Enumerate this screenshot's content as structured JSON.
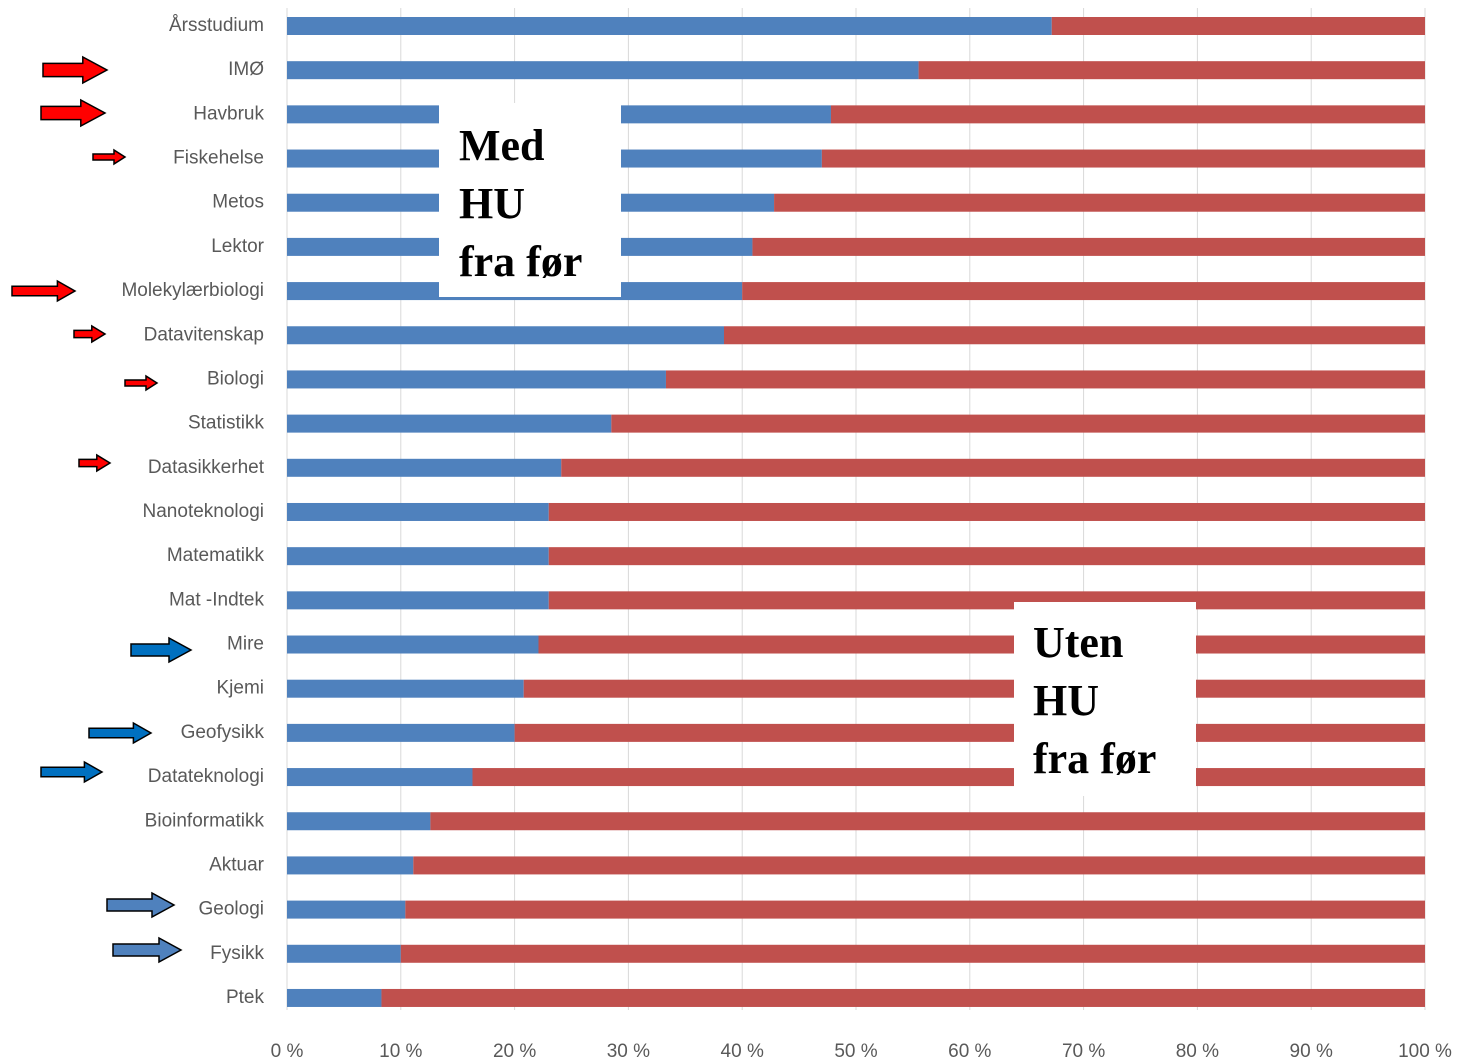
{
  "chart_data": {
    "type": "stacked_bar_horizontal",
    "categories": [
      "Årsstudium",
      "IMØ",
      "Havbruk",
      "Fiskehelse",
      "Metos",
      "Lektor",
      "Molekylærbiologi",
      "Datavitenskap",
      "Biologi",
      "Statistikk",
      "Datasikkerhet",
      "Nanoteknologi",
      "Matematikk",
      "Mat -Indtek",
      "Mire",
      "Kjemi",
      "Geofysikk",
      "Datateknologi",
      "Bioinformatikk",
      "Aktuar",
      "Geologi",
      "Fysikk",
      "Ptek"
    ],
    "series": [
      {
        "color": "#4f81bd",
        "values": [
          67.2,
          55.5,
          47.8,
          47.0,
          42.8,
          40.9,
          40.0,
          38.4,
          33.3,
          28.5,
          24.1,
          23.0,
          23.0,
          23.0,
          22.1,
          20.8,
          20.0,
          16.3,
          12.6,
          11.1,
          10.4,
          10.0,
          8.3
        ]
      },
      {
        "color": "#c0504d",
        "values": [
          32.8,
          44.5,
          52.2,
          53.0,
          57.2,
          59.1,
          60.0,
          61.6,
          66.7,
          71.5,
          75.9,
          77.0,
          77.0,
          77.0,
          77.9,
          79.2,
          80.0,
          83.7,
          87.4,
          88.9,
          89.6,
          90.0,
          91.7
        ]
      }
    ],
    "xlim": [
      0,
      100
    ],
    "xticks": [
      {
        "value": 0,
        "label": "0 %"
      },
      {
        "value": 10,
        "label": "10 %"
      },
      {
        "value": 20,
        "label": "20 %"
      },
      {
        "value": 30,
        "label": "30 %"
      },
      {
        "value": 40,
        "label": "40 %"
      },
      {
        "value": 50,
        "label": "50 %"
      },
      {
        "value": 60,
        "label": "60 %"
      },
      {
        "value": 70,
        "label": "70 %"
      },
      {
        "value": 80,
        "label": "80 %"
      },
      {
        "value": 90,
        "label": "90 %"
      },
      {
        "value": 100,
        "label": "100 %"
      }
    ],
    "grid": true,
    "annotations": [
      [
        "Med",
        "HU",
        "fra før"
      ],
      [
        "Uten",
        "HU",
        "fra før"
      ]
    ]
  }
}
